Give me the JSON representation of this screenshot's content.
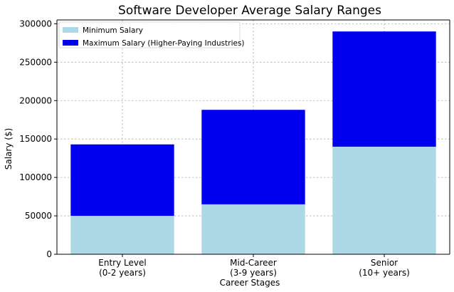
{
  "chart_data": {
    "type": "bar",
    "stacked": true,
    "title": "Software Developer Average Salary Ranges",
    "xlabel": "Career Stages",
    "ylabel": "Salary ($)",
    "categories": [
      [
        "Entry Level",
        "(0-2 years)"
      ],
      [
        "Mid-Career",
        "(3-9 years)"
      ],
      [
        "Senior",
        "(10+ years)"
      ]
    ],
    "series": [
      {
        "name": "Minimum Salary",
        "values": [
          50000,
          65000,
          140000
        ],
        "color": "#add8e6"
      },
      {
        "name": "Maximum Salary (Higher-Paying Industries)",
        "values": [
          93000,
          123000,
          150000
        ],
        "color": "#0000ee"
      }
    ],
    "ylim": [
      0,
      305000
    ],
    "yticks": [
      0,
      50000,
      100000,
      150000,
      200000,
      250000,
      300000
    ],
    "grid": true,
    "legend_position": "top-left"
  }
}
